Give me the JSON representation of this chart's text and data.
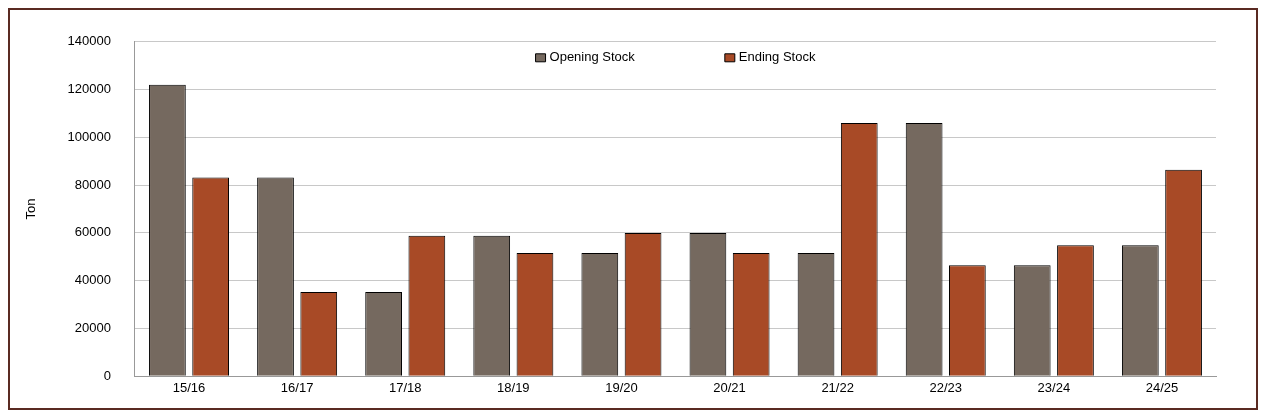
{
  "chart_data": {
    "type": "bar",
    "ylabel": "Ton",
    "categories": [
      "15/16",
      "16/17",
      "17/18",
      "18/19",
      "19/20",
      "20/21",
      "21/22",
      "22/23",
      "23/24",
      "24/25"
    ],
    "series": [
      {
        "name": "Opening Stock",
        "color": "#75695f",
        "values": [
          122000,
          83200,
          35200,
          58800,
          51600,
          60000,
          51600,
          106000,
          46400,
          54800
        ]
      },
      {
        "name": "Ending Stock",
        "color": "#a84a26",
        "values": [
          83200,
          35200,
          58800,
          51600,
          60000,
          51600,
          106000,
          46400,
          54800,
          86400
        ]
      }
    ],
    "ylim": [
      0,
      140000
    ],
    "yticks": [
      0,
      20000,
      40000,
      60000,
      80000,
      100000,
      120000,
      140000
    ],
    "grid": "y",
    "legend": "top"
  }
}
